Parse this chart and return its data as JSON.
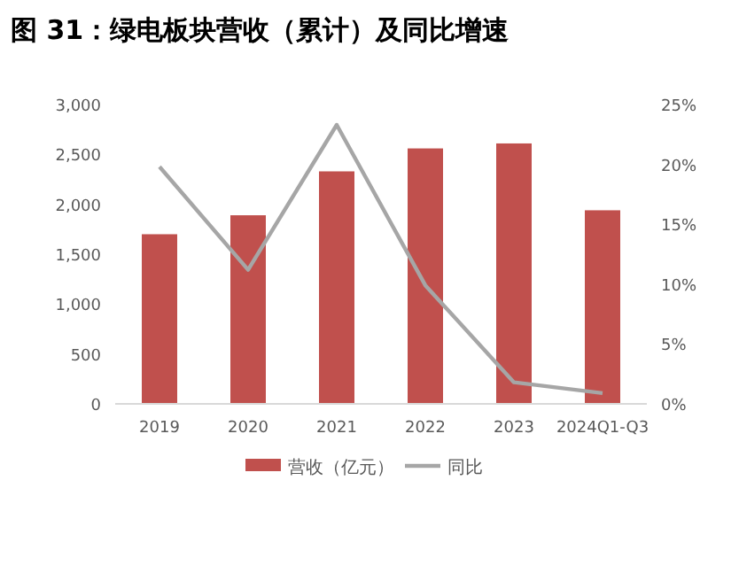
{
  "chart_data": {
    "type": "bar",
    "title": "图 31：绿电板块营收（累计）及同比增速",
    "categories": [
      "2019",
      "2020",
      "2021",
      "2022",
      "2023",
      "2024Q1-Q3"
    ],
    "series": [
      {
        "name": "营收（亿元）",
        "color": "#c0504d",
        "values": [
          1700,
          1890,
          2330,
          2560,
          2610,
          1940
        ]
      },
      {
        "name": "同比",
        "type": "line",
        "axis": "y2",
        "color": "#a6a6a6",
        "values": [
          19.8,
          11.2,
          23.3,
          9.9,
          1.8,
          0.9
        ]
      }
    ],
    "ylim": [
      0,
      3000
    ],
    "yticks": [
      {
        "value": 0,
        "label": "0"
      },
      {
        "value": 500,
        "label": "500"
      },
      {
        "value": 1000,
        "label": "1,000"
      },
      {
        "value": 1500,
        "label": "1,500"
      },
      {
        "value": 2000,
        "label": "2,000"
      },
      {
        "value": 2500,
        "label": "2,500"
      },
      {
        "value": 3000,
        "label": "3,000"
      }
    ],
    "y2lim": [
      0,
      25
    ],
    "y2ticks": [
      {
        "value": 0,
        "label": "0%"
      },
      {
        "value": 5,
        "label": "5%"
      },
      {
        "value": 10,
        "label": "10%"
      },
      {
        "value": 15,
        "label": "15%"
      },
      {
        "value": 20,
        "label": "20%"
      },
      {
        "value": 25,
        "label": "25%"
      }
    ],
    "legend": "bottom",
    "marker": "none"
  }
}
